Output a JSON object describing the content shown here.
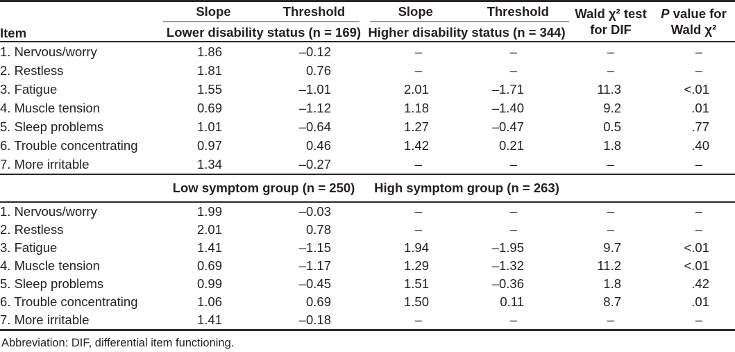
{
  "header": {
    "item": "Item",
    "slope": "Slope",
    "threshold": "Threshold",
    "group_left": "Lower disability status (n = 169)",
    "group_right": "Higher disability status (n = 344)",
    "wald_line1": "Wald χ² test",
    "wald_line2": "for DIF",
    "p_italic": "P",
    "p_line1_rest": " value for",
    "p_line2": "Wald χ²"
  },
  "sections": [
    {
      "rows": [
        {
          "item": "1. Nervous/worry",
          "values": [
            "1.86",
            "–0.12",
            "–",
            "–",
            "–",
            "–"
          ]
        },
        {
          "item": "2. Restless",
          "values": [
            "1.81",
            "0.76",
            "–",
            "–",
            "–",
            "–"
          ]
        },
        {
          "item": "3. Fatigue",
          "values": [
            "1.55",
            "–1.01",
            "2.01",
            "–1.71",
            "11.3",
            "<.01"
          ]
        },
        {
          "item": "4. Muscle tension",
          "values": [
            "0.69",
            "–1.12",
            "1.18",
            "–1.40",
            "9.2",
            ".01"
          ]
        },
        {
          "item": "5. Sleep problems",
          "values": [
            "1.01",
            "–0.64",
            "1.27",
            "–0.47",
            "0.5",
            ".77"
          ]
        },
        {
          "item": "6. Trouble concentrating",
          "values": [
            "0.97",
            "0.46",
            "1.42",
            "0.21",
            "1.8",
            ".40"
          ]
        },
        {
          "item": "7. More irritable",
          "values": [
            "1.34",
            "–0.27",
            "–",
            "–",
            "–",
            "–"
          ]
        }
      ]
    },
    {
      "band": {
        "left": "Low symptom group (n = 250)",
        "right": "High symptom group (n = 263)"
      },
      "rows": [
        {
          "item": "1. Nervous/worry",
          "values": [
            "1.99",
            "–0.03",
            "–",
            "–",
            "–",
            "–"
          ]
        },
        {
          "item": "2. Restless",
          "values": [
            "2.01",
            "0.78",
            "–",
            "–",
            "–",
            "–"
          ]
        },
        {
          "item": "3. Fatigue",
          "values": [
            "1.41",
            "–1.15",
            "1.94",
            "–1.95",
            "9.7",
            "<.01"
          ]
        },
        {
          "item": "4. Muscle tension",
          "values": [
            "0.69",
            "–1.17",
            "1.29",
            "–1.32",
            "11.2",
            "<.01"
          ]
        },
        {
          "item": "5. Sleep problems",
          "values": [
            "0.99",
            "–0.45",
            "1.51",
            "–0.36",
            "1.8",
            ".42"
          ]
        },
        {
          "item": "6. Trouble concentrating",
          "values": [
            "1.06",
            "0.69",
            "1.50",
            "0.11",
            "8.7",
            ".01"
          ]
        },
        {
          "item": "7. More irritable",
          "values": [
            "1.41",
            "–0.18",
            "–",
            "–",
            "–",
            "–"
          ]
        }
      ]
    }
  ],
  "footnote": "Abbreviation: DIF, differential item functioning."
}
